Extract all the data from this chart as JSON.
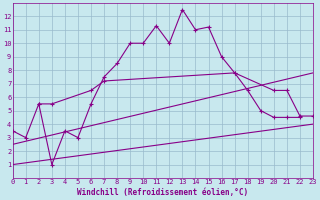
{
  "bg_color": "#c8e8ee",
  "grid_color": "#99bbcc",
  "line_color": "#880088",
  "xlabel": "Windchill (Refroidissement éolien,°C)",
  "xlim": [
    0,
    23
  ],
  "ylim": [
    0,
    13
  ],
  "line1_x": [
    0,
    1,
    2,
    3,
    4,
    5,
    6,
    7,
    8,
    9,
    10,
    11,
    12,
    13,
    14,
    15,
    16,
    17,
    18,
    19,
    20,
    21,
    22
  ],
  "line1_y": [
    3.5,
    3.0,
    5.5,
    1.0,
    3.5,
    3.0,
    5.5,
    7.5,
    8.5,
    10.0,
    10.0,
    11.3,
    10.0,
    12.5,
    11.0,
    11.2,
    9.0,
    7.8,
    6.5,
    5.0,
    4.5,
    4.5,
    4.5
  ],
  "line2_x": [
    2,
    3,
    6,
    7,
    17,
    20,
    21,
    22,
    23
  ],
  "line2_y": [
    5.5,
    5.5,
    6.5,
    7.2,
    7.8,
    6.5,
    6.5,
    4.6,
    4.6
  ],
  "line3_x": [
    0,
    23
  ],
  "line3_y": [
    1.0,
    4.0
  ],
  "line4_x": [
    0,
    23
  ],
  "line4_y": [
    2.5,
    7.8
  ]
}
